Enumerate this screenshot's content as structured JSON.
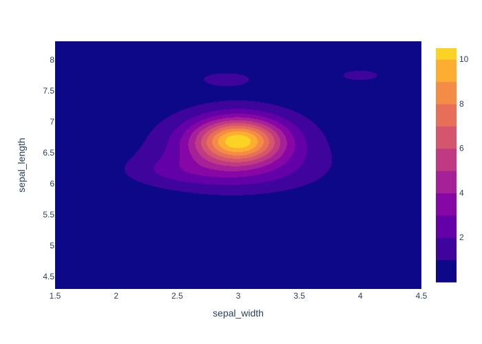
{
  "chart_data": {
    "type": "contour",
    "title": "",
    "xlabel": "sepal_width",
    "ylabel": "sepal_length",
    "xlim": [
      1.5,
      4.5
    ],
    "ylim": [
      4.3,
      8.3
    ],
    "x_ticks": [
      1.5,
      2,
      2.5,
      3,
      3.5,
      4,
      4.5
    ],
    "x_tick_labels": [
      "1.5",
      "2",
      "2.5",
      "3",
      "3.5",
      "4",
      "4.5"
    ],
    "y_ticks": [
      4.5,
      5,
      5.5,
      6,
      6.5,
      7,
      7.5,
      8
    ],
    "y_tick_labels": [
      "4.5",
      "5",
      "5.5",
      "6",
      "6.5",
      "7",
      "7.5",
      "8"
    ],
    "colorbar": {
      "range": [
        0,
        10.5
      ],
      "ticks": [
        2,
        4,
        6,
        8,
        10
      ],
      "tick_labels": [
        "2",
        "4",
        "6",
        "8",
        "10"
      ],
      "level_step": 1,
      "colors": [
        "#0d0887",
        "#3e049c",
        "#6300a7",
        "#8606a6",
        "#a62098",
        "#c03a83",
        "#d5546e",
        "#e76f5a",
        "#f58c46",
        "#fdad32",
        "#fcd225",
        "#f0f921"
      ]
    },
    "peaks": [
      {
        "x": 3.0,
        "y": 6.7,
        "value": 10.5
      },
      {
        "x": 4.0,
        "y": 7.75,
        "value": 1.5
      }
    ],
    "grid": false
  }
}
